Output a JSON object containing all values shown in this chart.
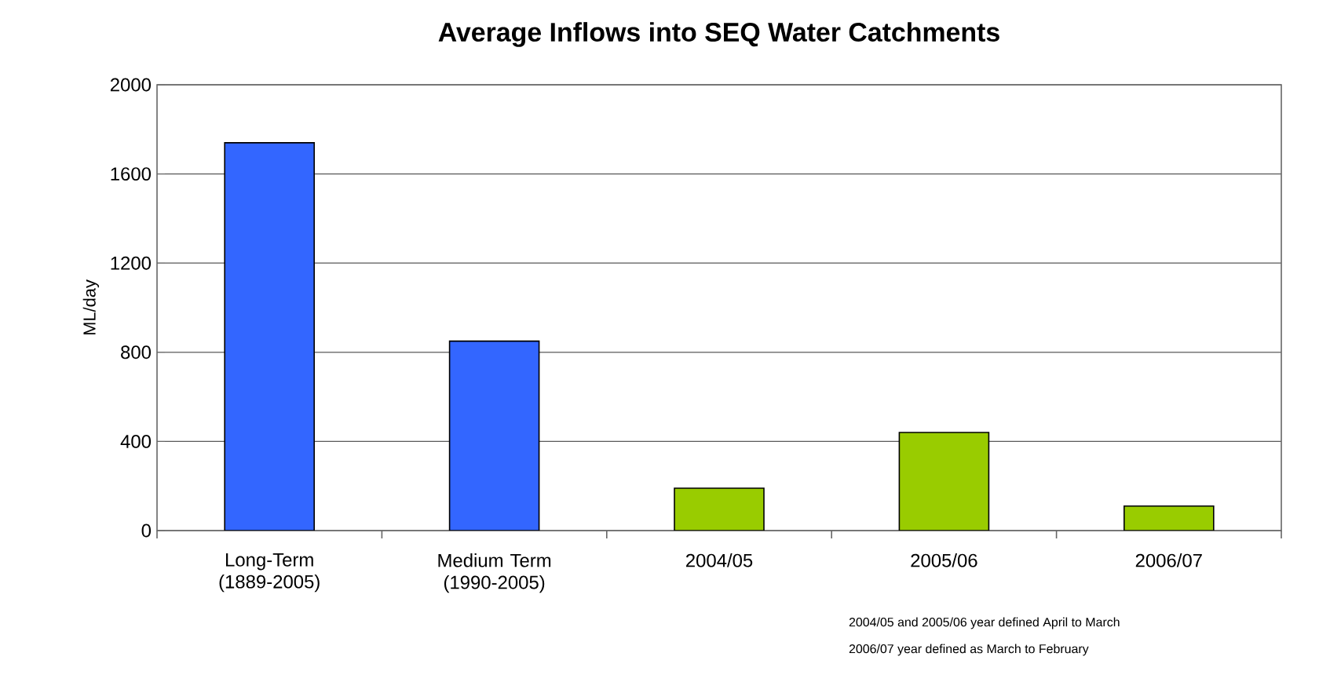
{
  "chart_data": {
    "type": "bar",
    "title": "Average Inflows into SEQ Water Catchments",
    "ylabel": "ML/day",
    "categories": [
      "Long-Term (1889-2005)",
      "Medium Term (1990-2005)",
      "2004/05",
      "2005/06",
      "2006/07"
    ],
    "values": [
      1740,
      850,
      190,
      440,
      110
    ],
    "colors": [
      "#3366ff",
      "#3366ff",
      "#99cc00",
      "#99cc00",
      "#99cc00"
    ],
    "ylim": [
      0,
      2000
    ],
    "yticks": [
      0,
      400,
      800,
      1200,
      1600,
      2000
    ],
    "grid": "y",
    "annotations": [
      "2004/05 and 2005/06 year defined April to March",
      "2006/07 year defined as March to February"
    ]
  }
}
